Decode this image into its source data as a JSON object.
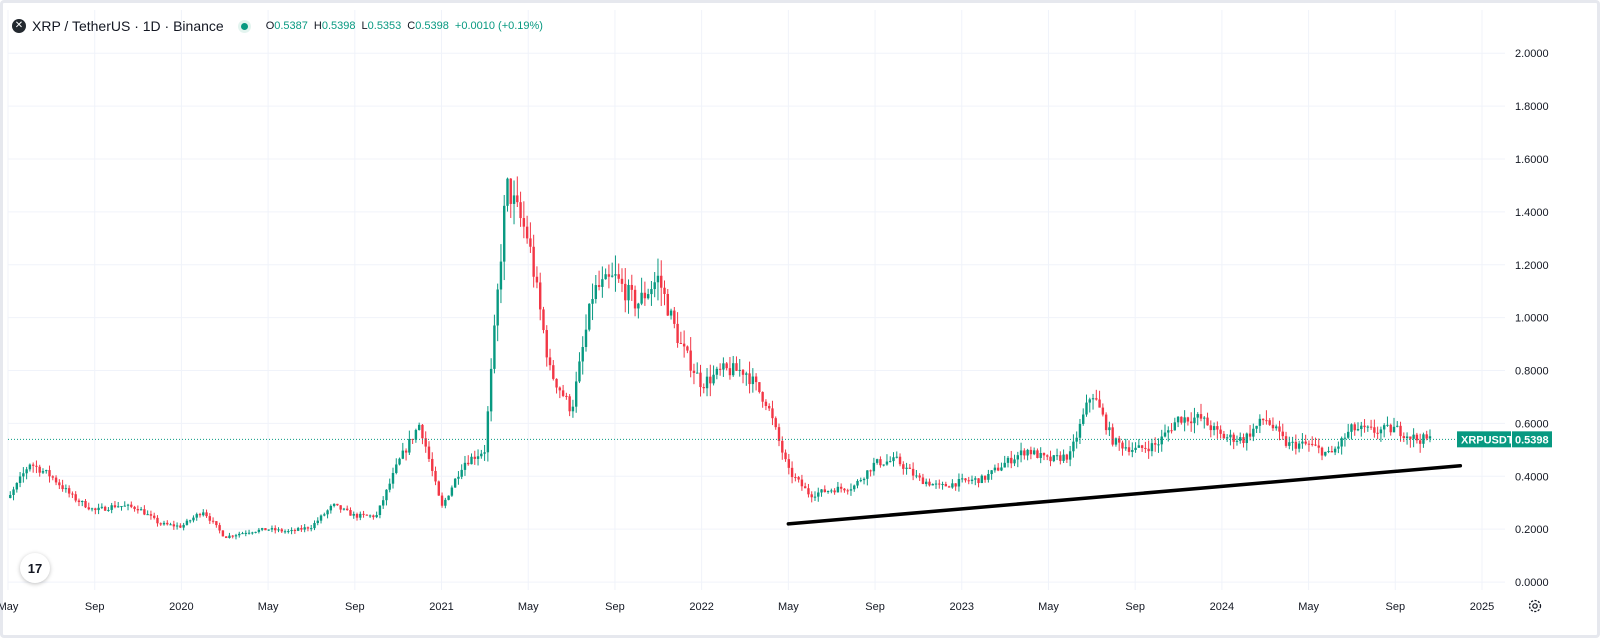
{
  "legend": {
    "logo_glyph": "✕",
    "symbol_title": "XRP / TetherUS · 1D · Binance",
    "open_label": "O",
    "open_value": "0.5387",
    "high_label": "H",
    "high_value": "0.5398",
    "low_label": "L",
    "low_value": "0.5353",
    "close_label": "C",
    "close_value": "0.5398",
    "change": "+0.0010 (+0.19%)"
  },
  "colors": {
    "up": "#089981",
    "down": "#f23645",
    "grid": "#f0f3fa",
    "axis_text": "#131722",
    "trendline": "#000000"
  },
  "price_tag": {
    "label": "XRPUSDT",
    "value": "0.5398"
  },
  "watermark": "17",
  "settings_icon": "gear-icon",
  "chart_data": {
    "type": "candlestick",
    "title": "XRP / TetherUS · 1D · Binance",
    "xlabel": "",
    "ylabel": "",
    "ylim": [
      -0.03,
      2.05
    ],
    "yticks": [
      "2.0000",
      "1.8000",
      "1.6000",
      "1.4000",
      "1.2000",
      "1.0000",
      "0.8000",
      "0.6000",
      "0.4000",
      "0.2000",
      "0.0000"
    ],
    "xticks": [
      {
        "label": "May",
        "date": "2019-05"
      },
      {
        "label": "Sep",
        "date": "2019-09"
      },
      {
        "label": "2020",
        "date": "2020-01"
      },
      {
        "label": "May",
        "date": "2020-05"
      },
      {
        "label": "Sep",
        "date": "2020-09"
      },
      {
        "label": "2021",
        "date": "2021-01"
      },
      {
        "label": "May",
        "date": "2021-05"
      },
      {
        "label": "Sep",
        "date": "2021-09"
      },
      {
        "label": "2022",
        "date": "2022-01"
      },
      {
        "label": "May",
        "date": "2022-05"
      },
      {
        "label": "Sep",
        "date": "2022-09"
      },
      {
        "label": "2023",
        "date": "2023-01"
      },
      {
        "label": "May",
        "date": "2023-05"
      },
      {
        "label": "Sep",
        "date": "2023-09"
      },
      {
        "label": "2024",
        "date": "2024-01"
      },
      {
        "label": "May",
        "date": "2024-05"
      },
      {
        "label": "Sep",
        "date": "2024-09"
      },
      {
        "label": "2025",
        "date": "2025-01"
      }
    ],
    "x_start": "2019-05",
    "x_end": "2025-01",
    "price_path": [
      [
        "2019-04",
        0.33
      ],
      [
        "2019-05",
        0.31
      ],
      [
        "2019-06",
        0.45
      ],
      [
        "2019-07",
        0.4
      ],
      [
        "2019-08",
        0.32
      ],
      [
        "2019-09",
        0.27
      ],
      [
        "2019-10",
        0.29
      ],
      [
        "2019-11",
        0.28
      ],
      [
        "2019-12",
        0.22
      ],
      [
        "2020-01",
        0.21
      ],
      [
        "2020-02",
        0.27
      ],
      [
        "2020-03",
        0.17
      ],
      [
        "2020-04",
        0.19
      ],
      [
        "2020-05",
        0.2
      ],
      [
        "2020-06",
        0.19
      ],
      [
        "2020-07",
        0.21
      ],
      [
        "2020-08",
        0.29
      ],
      [
        "2020-09",
        0.25
      ],
      [
        "2020-10",
        0.25
      ],
      [
        "2020-11",
        0.45
      ],
      [
        "2020-12",
        0.6
      ],
      [
        "2021-01",
        0.28
      ],
      [
        "2021-02",
        0.45
      ],
      [
        "2021-03",
        0.5
      ],
      [
        "2021-04",
        1.5
      ],
      [
        "2021-05",
        1.3
      ],
      [
        "2021-06",
        0.8
      ],
      [
        "2021-07",
        0.65
      ],
      [
        "2021-08",
        1.1
      ],
      [
        "2021-09",
        1.15
      ],
      [
        "2021-10",
        1.05
      ],
      [
        "2021-11",
        1.15
      ],
      [
        "2021-12",
        0.9
      ],
      [
        "2022-01",
        0.75
      ],
      [
        "2022-02",
        0.8
      ],
      [
        "2022-03",
        0.8
      ],
      [
        "2022-04",
        0.68
      ],
      [
        "2022-05",
        0.42
      ],
      [
        "2022-06",
        0.33
      ],
      [
        "2022-07",
        0.35
      ],
      [
        "2022-08",
        0.36
      ],
      [
        "2022-09",
        0.45
      ],
      [
        "2022-10",
        0.46
      ],
      [
        "2022-11",
        0.39
      ],
      [
        "2022-12",
        0.36
      ],
      [
        "2023-01",
        0.38
      ],
      [
        "2023-02",
        0.39
      ],
      [
        "2023-03",
        0.45
      ],
      [
        "2023-04",
        0.5
      ],
      [
        "2023-05",
        0.46
      ],
      [
        "2023-06",
        0.48
      ],
      [
        "2023-07",
        0.72
      ],
      [
        "2023-08",
        0.53
      ],
      [
        "2023-09",
        0.5
      ],
      [
        "2023-10",
        0.52
      ],
      [
        "2023-11",
        0.62
      ],
      [
        "2023-12",
        0.62
      ],
      [
        "2024-01",
        0.55
      ],
      [
        "2024-02",
        0.54
      ],
      [
        "2024-03",
        0.62
      ],
      [
        "2024-04",
        0.52
      ],
      [
        "2024-05",
        0.52
      ],
      [
        "2024-06",
        0.48
      ],
      [
        "2024-07",
        0.58
      ],
      [
        "2024-08",
        0.57
      ],
      [
        "2024-09",
        0.58
      ],
      [
        "2024-10",
        0.54
      ]
    ],
    "last_price": 0.5398,
    "trendline": {
      "start": [
        "2022-05",
        0.22
      ],
      "end": [
        "2024-12",
        0.44
      ],
      "color": "#000000"
    },
    "grid": true
  }
}
